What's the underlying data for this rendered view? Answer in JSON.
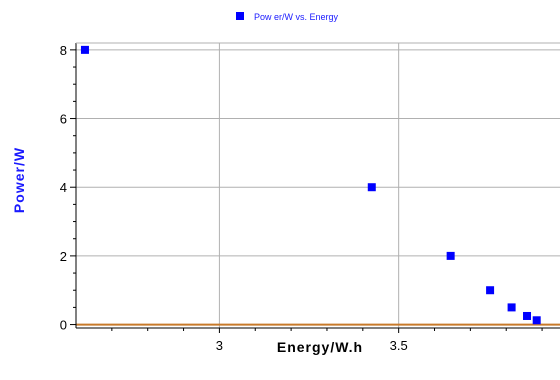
{
  "chart_data": {
    "type": "scatter",
    "xlabel": "Energy/W.h",
    "ylabel": "Power/W",
    "xlim": [
      2.6,
      3.95
    ],
    "ylim": [
      -0.1,
      8.2
    ],
    "x_ticks": [
      {
        "value": 3,
        "label": "3"
      },
      {
        "value": 3.5,
        "label": "3.5"
      }
    ],
    "y_ticks": [
      {
        "value": 0,
        "label": "0"
      },
      {
        "value": 2,
        "label": "2"
      },
      {
        "value": 4,
        "label": "4"
      },
      {
        "value": 6,
        "label": "6"
      },
      {
        "value": 8,
        "label": "8"
      }
    ],
    "grid": true,
    "legend": {
      "position": "top-center",
      "label": "Pow er/W vs. Energy"
    },
    "baseline": 0,
    "series": [
      {
        "name": "Pow er/W vs. Energy",
        "color": "#0000ff",
        "points": [
          {
            "x": 2.625,
            "y": 8
          },
          {
            "x": 3.425,
            "y": 4
          },
          {
            "x": 3.645,
            "y": 2
          },
          {
            "x": 3.755,
            "y": 1
          },
          {
            "x": 3.815,
            "y": 0.5
          },
          {
            "x": 3.858,
            "y": 0.25
          },
          {
            "x": 3.885,
            "y": 0.125
          }
        ]
      }
    ],
    "colors": {
      "axis": "#000000",
      "grid": "#b0b0b0",
      "baseline": "#c87a2a",
      "ylabel": "#1a1aff"
    }
  }
}
